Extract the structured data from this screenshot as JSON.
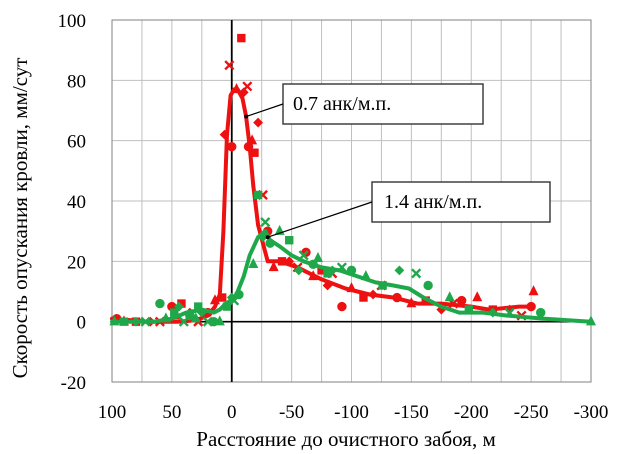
{
  "chart_data": {
    "type": "line",
    "title": "",
    "xlabel": "Расстояние до очистного забоя, м",
    "ylabel": "Скорость опускания кровли, мм/сут",
    "xlim": [
      100,
      -300
    ],
    "ylim": [
      -20,
      100
    ],
    "x_ticks": [
      "100",
      "50",
      "0",
      "-50",
      "-100",
      "-150",
      "-200",
      "-250",
      "-300"
    ],
    "y_ticks": [
      "-20",
      "0",
      "20",
      "40",
      "60",
      "80",
      "100"
    ],
    "grid": true,
    "series": [
      {
        "name": "0.7 анк/м.п.",
        "color": "#ee1111",
        "line": {
          "x": [
            100,
            70,
            45,
            30,
            20,
            14,
            10,
            7,
            4,
            1,
            -2,
            -5,
            -9,
            -12,
            -15,
            -18,
            -22,
            -26,
            -30,
            -40,
            -55,
            -75,
            -95,
            -115,
            -135,
            -155,
            -175,
            -200,
            -215,
            -240,
            -252
          ],
          "y": [
            1,
            0,
            0,
            0.5,
            2,
            5,
            9,
            30,
            62,
            75,
            77,
            77,
            74,
            68,
            58,
            45,
            32,
            26,
            20,
            20,
            18,
            14,
            11,
            9,
            8,
            6,
            6,
            5,
            4,
            5,
            5
          ]
        },
        "points": {
          "x": [
            96,
            90,
            80,
            68,
            60,
            50,
            46,
            42,
            35,
            28,
            20,
            14,
            8,
            6,
            2,
            0,
            -4,
            -8,
            -10,
            -13,
            -14,
            -17,
            -19,
            -22,
            -26,
            -30,
            -35,
            -42,
            -48,
            -55,
            -62,
            -68,
            -75,
            -80,
            -84,
            -92,
            -100,
            -110,
            -118,
            -125,
            -138,
            -150,
            -162,
            -175,
            -185,
            -192,
            -205,
            -218,
            -232,
            -242,
            -250,
            -252
          ],
          "y": [
            1,
            0,
            0,
            0,
            0,
            5,
            2,
            6,
            3,
            0,
            3,
            7,
            8,
            62,
            85,
            58,
            77,
            94,
            76,
            78,
            58,
            60,
            56,
            66,
            42,
            30,
            18,
            20,
            20,
            18,
            23,
            15,
            17,
            12,
            16,
            5,
            11,
            8,
            9,
            12,
            8,
            6,
            7,
            4,
            6,
            7,
            8,
            4,
            4,
            2,
            5,
            10
          ]
        }
      },
      {
        "name": "1.4 анк/м.п.",
        "color": "#1fa84a",
        "line": {
          "x": [
            100,
            75,
            65,
            50,
            38,
            25,
            15,
            10,
            5,
            1,
            -4,
            -10,
            -15,
            -22,
            -28,
            -32,
            -40,
            -50,
            -60,
            -75,
            -90,
            -105,
            -120,
            -135,
            -148,
            -160,
            -175,
            -190,
            -210,
            -230,
            -260,
            -300
          ],
          "y": [
            0,
            0,
            0,
            1,
            3,
            4,
            3,
            4,
            6,
            7,
            9,
            15,
            22,
            28,
            30,
            27,
            25,
            22,
            20,
            18,
            17,
            15,
            13,
            12,
            11,
            8,
            5,
            3,
            3,
            2,
            1,
            0
          ]
        },
        "points": {
          "x": [
            98,
            90,
            80,
            72,
            60,
            55,
            48,
            44,
            40,
            35,
            30,
            28,
            25,
            20,
            15,
            10,
            4,
            0,
            -2,
            -6,
            -18,
            -22,
            -26,
            -28,
            -32,
            -40,
            -48,
            -56,
            -60,
            -68,
            -72,
            -80,
            -84,
            -92,
            -100,
            -112,
            -126,
            -140,
            -154,
            -164,
            -182,
            -198,
            -218,
            -232,
            -258,
            -300
          ],
          "y": [
            0,
            0,
            0,
            0,
            6,
            1,
            3,
            5,
            0,
            2,
            1,
            5,
            3,
            0,
            0,
            0,
            5,
            8,
            7,
            9,
            19,
            42,
            28,
            33,
            26,
            30,
            27,
            17,
            22,
            19,
            21,
            16,
            17,
            18,
            17,
            15,
            12,
            17,
            16,
            12,
            8,
            4,
            3,
            3,
            3,
            0
          ]
        }
      }
    ],
    "annotations": [
      {
        "text": "0.7 анк/м.п.",
        "arrow_to": [
          -12,
          68
        ]
      },
      {
        "text": "1.4 анк/м.п.",
        "arrow_to": [
          -30,
          28
        ]
      }
    ]
  }
}
